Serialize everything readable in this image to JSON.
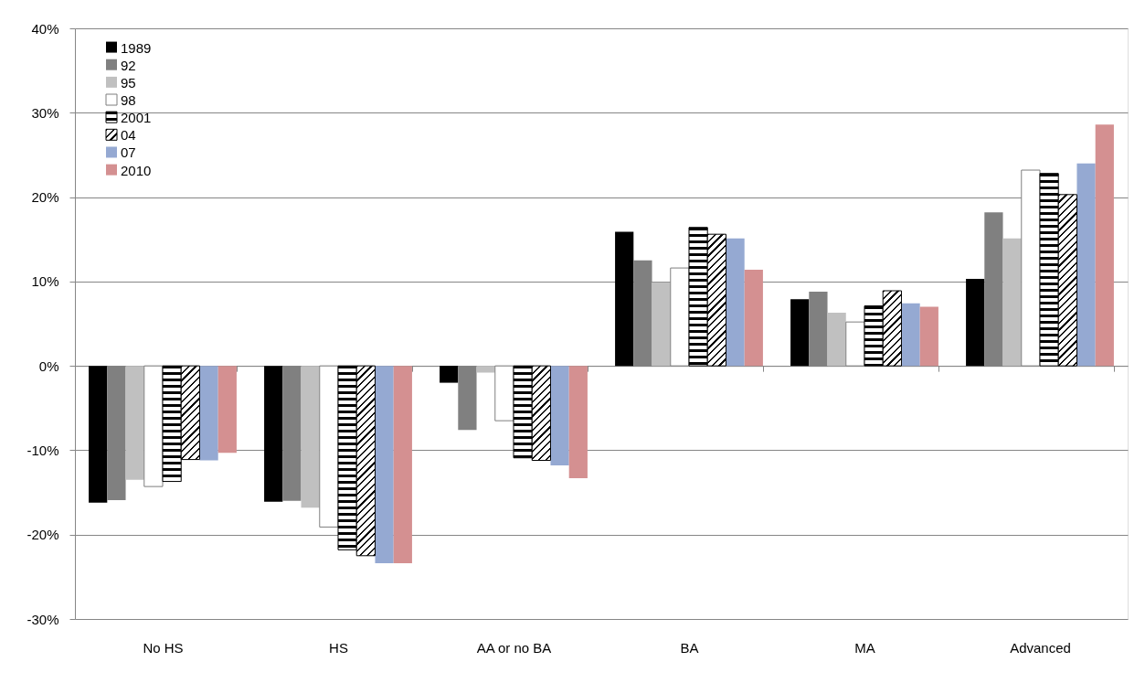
{
  "chart_data": {
    "type": "bar",
    "categories": [
      "No HS",
      "HS",
      "AA or no BA",
      "BA",
      "MA",
      "Advanced"
    ],
    "series": [
      {
        "name": "1989",
        "color": "#000000",
        "values": [
          -16.2,
          -16.1,
          -2.0,
          15.9,
          7.9,
          10.3
        ]
      },
      {
        "name": "92",
        "color": "#808080",
        "values": [
          -15.9,
          -16.0,
          -7.6,
          12.5,
          8.8,
          18.2
        ]
      },
      {
        "name": "95",
        "color": "#c0c0c0",
        "values": [
          -13.5,
          -16.8,
          -0.8,
          9.9,
          6.3,
          15.1
        ]
      },
      {
        "name": "98",
        "color": "#ffffff",
        "values": [
          -14.3,
          -19.1,
          -6.5,
          11.6,
          5.2,
          23.2
        ]
      },
      {
        "name": "2001",
        "color": "#000000",
        "values": [
          -13.7,
          -21.8,
          -10.9,
          16.4,
          7.1,
          22.8
        ]
      },
      {
        "name": "04",
        "color": "#000000",
        "values": [
          -11.1,
          -22.5,
          -11.2,
          15.6,
          8.9,
          20.3
        ]
      },
      {
        "name": "07",
        "color": "#95a9d2",
        "values": [
          -11.2,
          -23.4,
          -11.8,
          15.1,
          7.4,
          24.0
        ]
      },
      {
        "name": "2010",
        "color": "#d49091",
        "values": [
          -10.3,
          -23.4,
          -13.3,
          11.4,
          7.0,
          28.6
        ]
      }
    ],
    "ylim": [
      -30,
      40
    ],
    "yticks": [
      {
        "value": -30,
        "label": "-30%"
      },
      {
        "value": -20,
        "label": "-20%"
      },
      {
        "value": -10,
        "label": "-10%"
      },
      {
        "value": 0,
        "label": "0%"
      },
      {
        "value": 10,
        "label": "10%"
      },
      {
        "value": 20,
        "label": "20%"
      },
      {
        "value": 30,
        "label": "30%"
      },
      {
        "value": 40,
        "label": "40%"
      }
    ],
    "grid": "y",
    "legend": "top left"
  }
}
